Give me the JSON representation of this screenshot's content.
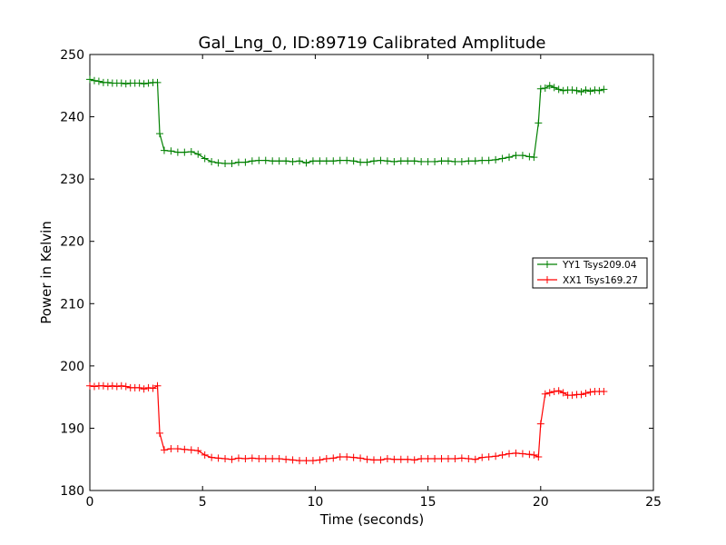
{
  "chart_data": {
    "type": "line",
    "title": "Gal_Lng_0, ID:89719 Calibrated Amplitude",
    "xlabel": "Time (seconds)",
    "ylabel": "Power in Kelvin",
    "xlim": [
      0,
      25
    ],
    "ylim": [
      180,
      250
    ],
    "xticks": [
      0,
      5,
      10,
      15,
      20,
      25
    ],
    "yticks": [
      180,
      190,
      200,
      210,
      220,
      230,
      240,
      250
    ],
    "grid": false,
    "legend_position": "right",
    "x": [
      0.0,
      0.2,
      0.4,
      0.6,
      0.8,
      1.0,
      1.2,
      1.4,
      1.6,
      1.8,
      2.0,
      2.2,
      2.4,
      2.6,
      2.8,
      3.0,
      3.1,
      3.3,
      3.6,
      3.9,
      4.2,
      4.5,
      4.8,
      5.1,
      5.4,
      5.7,
      6.0,
      6.3,
      6.6,
      6.9,
      7.2,
      7.5,
      7.8,
      8.1,
      8.4,
      8.7,
      9.0,
      9.3,
      9.6,
      9.9,
      10.2,
      10.5,
      10.8,
      11.1,
      11.4,
      11.7,
      12.0,
      12.3,
      12.6,
      12.9,
      13.2,
      13.5,
      13.8,
      14.1,
      14.4,
      14.7,
      15.0,
      15.3,
      15.6,
      15.9,
      16.2,
      16.5,
      16.8,
      17.1,
      17.4,
      17.7,
      18.0,
      18.3,
      18.6,
      18.9,
      19.2,
      19.5,
      19.7,
      19.9,
      20.0,
      20.2,
      20.4,
      20.6,
      20.8,
      21.0,
      21.2,
      21.4,
      21.6,
      21.8,
      22.0,
      22.2,
      22.4,
      22.6,
      22.8
    ],
    "series": [
      {
        "name": "YY1 Tsys209.04",
        "color": "#008000",
        "values": [
          246.0,
          245.8,
          245.7,
          245.5,
          245.5,
          245.4,
          245.4,
          245.4,
          245.3,
          245.4,
          245.4,
          245.4,
          245.3,
          245.4,
          245.5,
          245.5,
          237.3,
          234.6,
          234.5,
          234.3,
          234.3,
          234.4,
          234.0,
          233.3,
          232.8,
          232.6,
          232.5,
          232.5,
          232.7,
          232.7,
          232.9,
          233.0,
          233.0,
          232.9,
          232.9,
          232.9,
          232.8,
          232.9,
          232.6,
          232.9,
          232.9,
          232.9,
          232.9,
          233.0,
          233.0,
          232.9,
          232.7,
          232.7,
          232.9,
          233.0,
          232.9,
          232.8,
          232.9,
          232.9,
          232.9,
          232.8,
          232.8,
          232.8,
          232.9,
          232.9,
          232.8,
          232.8,
          232.9,
          232.9,
          233.0,
          233.0,
          233.1,
          233.3,
          233.5,
          233.8,
          233.8,
          233.6,
          233.5,
          239.0,
          244.5,
          244.6,
          245.0,
          244.7,
          244.4,
          244.2,
          244.3,
          244.3,
          244.2,
          244.0,
          244.3,
          244.1,
          244.3,
          244.2,
          244.4
        ]
      },
      {
        "name": "XX1 Tsys169.27",
        "color": "#ff0000",
        "values": [
          196.8,
          196.7,
          196.8,
          196.8,
          196.7,
          196.8,
          196.7,
          196.8,
          196.7,
          196.5,
          196.5,
          196.5,
          196.3,
          196.5,
          196.4,
          196.8,
          189.2,
          186.5,
          186.7,
          186.7,
          186.6,
          186.5,
          186.4,
          185.7,
          185.3,
          185.2,
          185.1,
          185.0,
          185.2,
          185.1,
          185.2,
          185.1,
          185.1,
          185.1,
          185.1,
          185.0,
          184.9,
          184.8,
          184.8,
          184.8,
          184.9,
          185.1,
          185.2,
          185.4,
          185.4,
          185.3,
          185.2,
          185.0,
          184.9,
          184.9,
          185.1,
          185.0,
          185.0,
          185.0,
          184.9,
          185.1,
          185.1,
          185.1,
          185.1,
          185.1,
          185.1,
          185.2,
          185.1,
          185.0,
          185.3,
          185.4,
          185.5,
          185.7,
          185.9,
          186.0,
          185.9,
          185.8,
          185.7,
          185.4,
          190.7,
          195.5,
          195.7,
          195.9,
          196.0,
          195.7,
          195.3,
          195.3,
          195.4,
          195.4,
          195.6,
          195.8,
          195.9,
          195.9,
          195.9
        ]
      }
    ]
  }
}
